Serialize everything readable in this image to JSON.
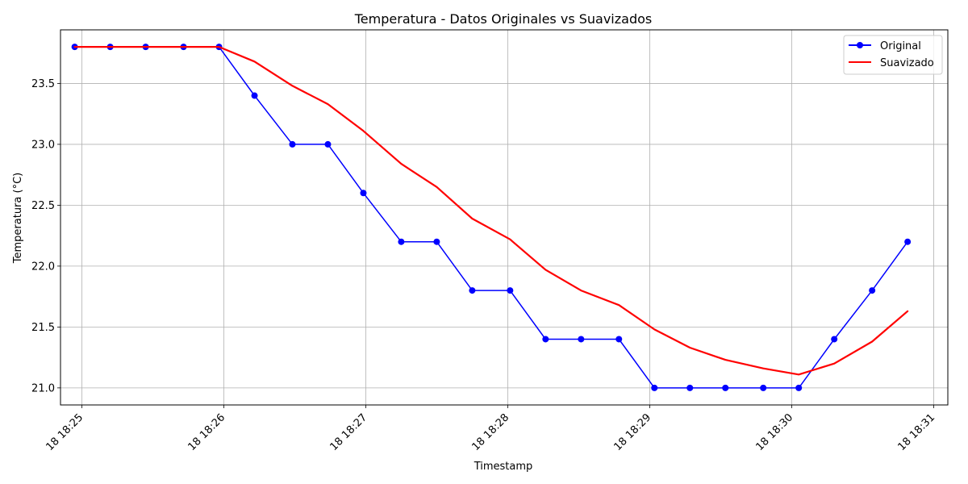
{
  "chart_data": {
    "type": "line",
    "title": "Temperatura - Datos Originales vs Suavizados",
    "xlabel": "Timestamp",
    "ylabel": "Temperatura (°C)",
    "grid": true,
    "legend_position": "top-right",
    "xlim": [
      "18:24:51",
      "18:31:06"
    ],
    "ylim": [
      20.86,
      23.94
    ],
    "x_ticks": [
      {
        "value": "18:25:00",
        "label": "18 18:25"
      },
      {
        "value": "18:26:00",
        "label": "18 18:26"
      },
      {
        "value": "18:27:00",
        "label": "18 18:27"
      },
      {
        "value": "18:28:00",
        "label": "18 18:28"
      },
      {
        "value": "18:29:00",
        "label": "18 18:29"
      },
      {
        "value": "18:30:00",
        "label": "18 18:30"
      },
      {
        "value": "18:31:00",
        "label": "18 18:31"
      }
    ],
    "y_ticks": [
      {
        "value": 21.0,
        "label": "21.0"
      },
      {
        "value": 21.5,
        "label": "21.5"
      },
      {
        "value": 22.0,
        "label": "22.0"
      },
      {
        "value": 22.5,
        "label": "22.5"
      },
      {
        "value": 23.0,
        "label": "23.0"
      },
      {
        "value": 23.5,
        "label": "23.5"
      }
    ],
    "x": [
      "18:24:57",
      "18:25:12",
      "18:25:27",
      "18:25:43",
      "18:25:58",
      "18:26:13",
      "18:26:29",
      "18:26:44",
      "18:26:59",
      "18:27:15",
      "18:27:30",
      "18:27:45",
      "18:28:01",
      "18:28:16",
      "18:28:31",
      "18:28:47",
      "18:29:02",
      "18:29:17",
      "18:29:32",
      "18:29:48",
      "18:30:03",
      "18:30:18",
      "18:30:34",
      "18:30:49"
    ],
    "series": [
      {
        "name": "Original",
        "color": "#0000ff",
        "marker": "circle",
        "values": [
          23.8,
          23.8,
          23.8,
          23.8,
          23.8,
          23.4,
          23.0,
          23.0,
          22.6,
          22.2,
          22.2,
          21.8,
          21.8,
          21.4,
          21.4,
          21.4,
          21.0,
          21.0,
          21.0,
          21.0,
          21.0,
          21.4,
          21.8,
          22.2
        ]
      },
      {
        "name": "Suavizado",
        "color": "#ff0000",
        "marker": "none",
        "values": [
          23.8,
          23.8,
          23.8,
          23.8,
          23.8,
          23.68,
          23.48,
          23.33,
          23.11,
          22.84,
          22.65,
          22.39,
          22.22,
          21.97,
          21.8,
          21.68,
          21.48,
          21.33,
          21.23,
          21.16,
          21.11,
          21.2,
          21.38,
          21.63
        ]
      }
    ]
  }
}
